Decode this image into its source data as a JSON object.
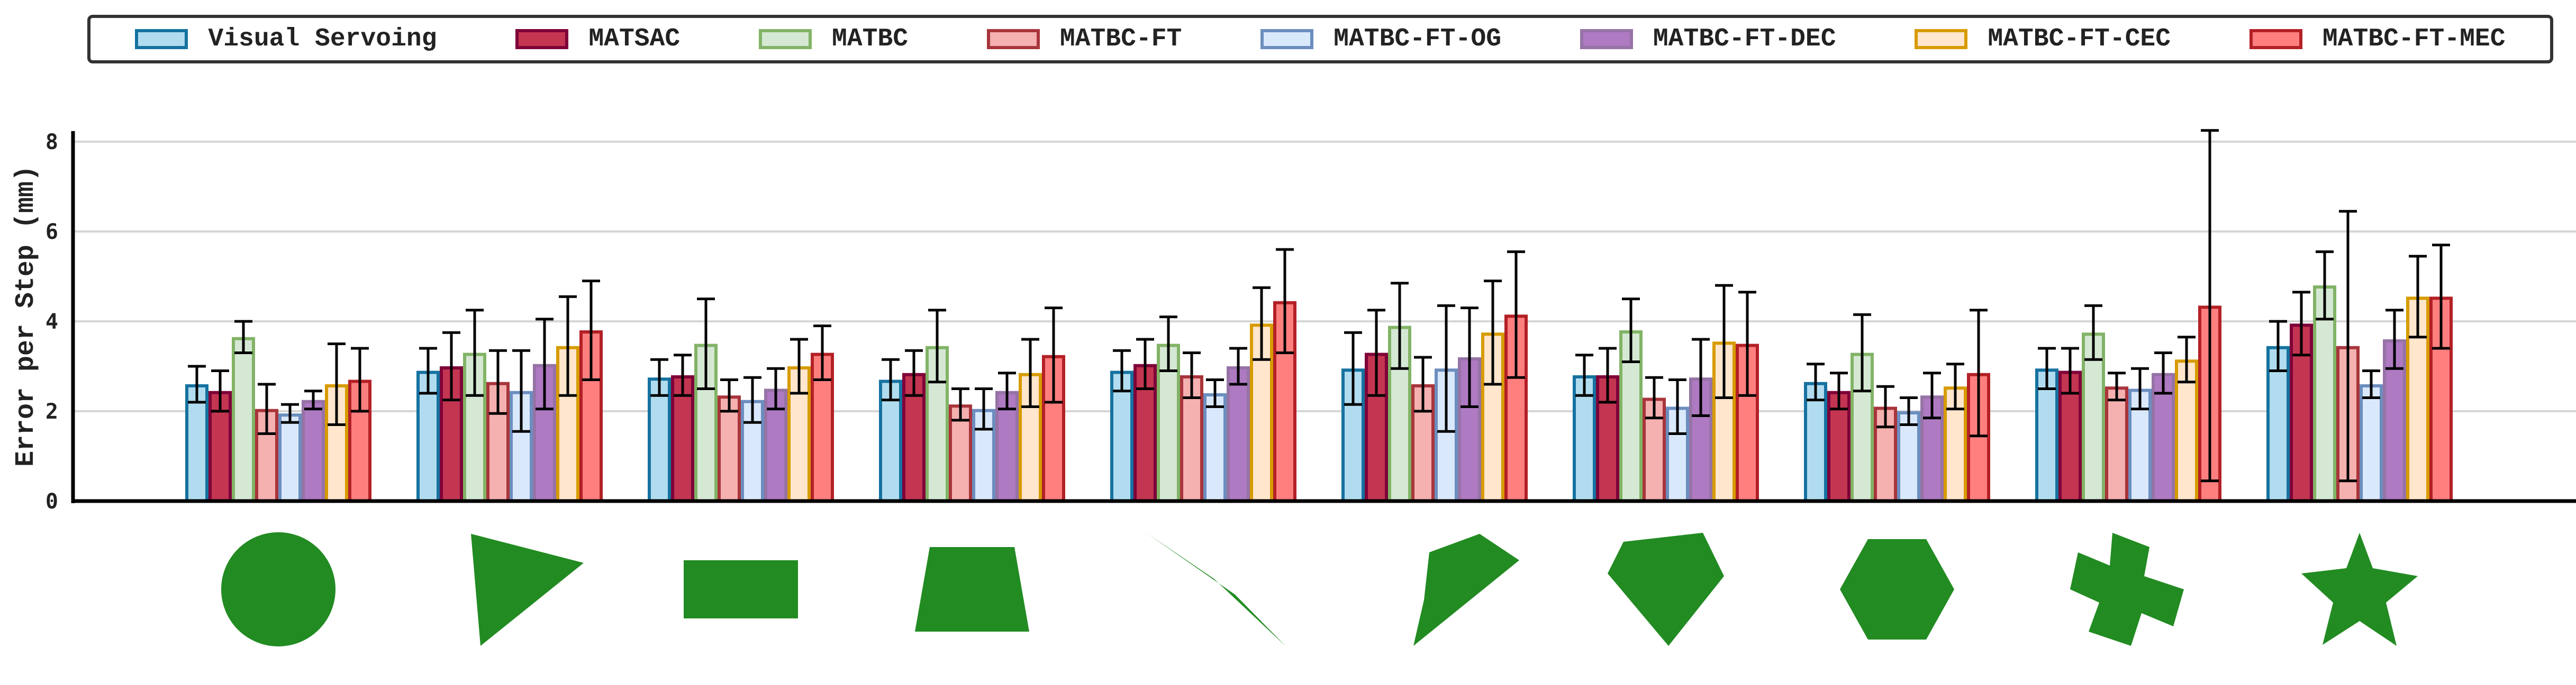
{
  "chart_data": {
    "type": "bar",
    "title": "",
    "xlabel": "",
    "ylabel": "Error per Step (mm)",
    "ylim": [
      0,
      8.3
    ],
    "yticks": [
      0,
      2,
      4,
      6,
      8
    ],
    "grid": "horizontal",
    "legend_position": "top",
    "categories": [
      "circle",
      "triangle",
      "rectangle",
      "trapezoid",
      "parallelogram",
      "pentagon",
      "irregular-pentagon",
      "hexagon",
      "cross",
      "star"
    ],
    "series": [
      {
        "name": "Visual Servoing",
        "fill": "#b1dcef",
        "edge": "#1672a0",
        "values": [
          2.6,
          2.9,
          2.75,
          2.7,
          2.9,
          2.95,
          2.8,
          2.65,
          2.95,
          3.45
        ],
        "errors": [
          0.4,
          0.5,
          0.4,
          0.45,
          0.45,
          0.8,
          0.45,
          0.4,
          0.45,
          0.55
        ]
      },
      {
        "name": "MATSAC",
        "fill": "#c33551",
        "edge": "#7e0239",
        "values": [
          2.45,
          3.0,
          2.8,
          2.85,
          3.05,
          3.3,
          2.8,
          2.45,
          2.9,
          3.95
        ],
        "errors": [
          0.45,
          0.75,
          0.45,
          0.5,
          0.55,
          0.95,
          0.6,
          0.4,
          0.5,
          0.7
        ]
      },
      {
        "name": "MATBC",
        "fill": "#d5e8d4",
        "edge": "#82b366",
        "values": [
          3.65,
          3.3,
          3.5,
          3.45,
          3.5,
          3.9,
          3.8,
          3.3,
          3.75,
          4.8
        ],
        "errors": [
          0.35,
          0.95,
          1.0,
          0.8,
          0.6,
          0.95,
          0.7,
          0.85,
          0.6,
          0.75
        ]
      },
      {
        "name": "MATBC-FT",
        "fill": "#f5b0b0",
        "edge": "#a8353b",
        "values": [
          2.05,
          2.65,
          2.35,
          2.15,
          2.8,
          2.6,
          2.3,
          2.1,
          2.55,
          3.45
        ],
        "errors": [
          0.55,
          0.7,
          0.35,
          0.35,
          0.5,
          0.6,
          0.45,
          0.45,
          0.3,
          3.0
        ]
      },
      {
        "name": "MATBC-FT-OG",
        "fill": "#dae8fc",
        "edge": "#6c8ebf",
        "values": [
          1.95,
          2.45,
          2.25,
          2.05,
          2.4,
          2.95,
          2.1,
          2.0,
          2.5,
          2.6
        ],
        "errors": [
          0.2,
          0.9,
          0.5,
          0.45,
          0.3,
          1.4,
          0.6,
          0.3,
          0.45,
          0.3
        ]
      },
      {
        "name": "MATBC-FT-DEC",
        "fill": "#ae7ac2",
        "edge": "#9673a6",
        "values": [
          2.25,
          3.05,
          2.5,
          2.45,
          3.0,
          3.2,
          2.75,
          2.35,
          2.85,
          3.6
        ],
        "errors": [
          0.2,
          1.0,
          0.45,
          0.4,
          0.4,
          1.1,
          0.85,
          0.5,
          0.45,
          0.65
        ]
      },
      {
        "name": "MATBC-FT-CEC",
        "fill": "#ffe6cc",
        "edge": "#d79b00",
        "values": [
          2.6,
          3.45,
          3.0,
          2.85,
          3.95,
          3.75,
          3.55,
          2.55,
          3.15,
          4.55
        ],
        "errors": [
          0.9,
          1.1,
          0.6,
          0.75,
          0.8,
          1.15,
          1.25,
          0.5,
          0.5,
          0.9
        ]
      },
      {
        "name": "MATBC-FT-MEC",
        "fill": "#ff7f7f",
        "edge": "#b32025",
        "values": [
          2.7,
          3.8,
          3.3,
          3.25,
          4.45,
          4.15,
          3.5,
          2.85,
          4.35,
          4.55
        ],
        "errors": [
          0.7,
          1.1,
          0.6,
          1.05,
          1.15,
          1.4,
          1.15,
          1.4,
          3.9,
          1.15
        ]
      }
    ],
    "category_icon_color": "#228b22"
  }
}
